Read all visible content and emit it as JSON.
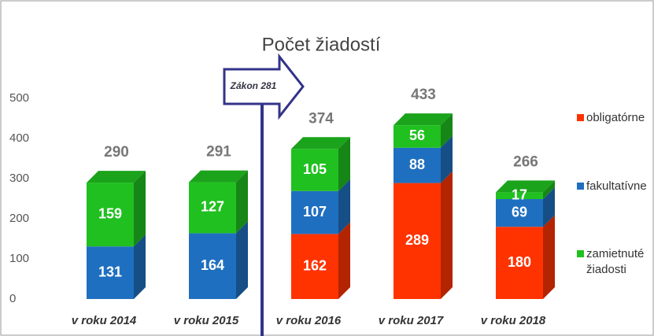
{
  "chart_data": {
    "type": "bar3d_stacked",
    "title": "Počet žiadostí",
    "categories": [
      "v roku 2014",
      "v roku 2015",
      "v roku 2016",
      "v roku 2017",
      "v roku 2018"
    ],
    "series": [
      {
        "name": "obligatórne",
        "color": "#ff3300",
        "values": [
          null,
          null,
          162,
          289,
          180
        ]
      },
      {
        "name": "fakultatívne",
        "color": "#1f6fc0",
        "values": [
          131,
          164,
          107,
          88,
          69
        ]
      },
      {
        "name": "zamietnuté žiadosti",
        "color": "#20c020",
        "values": [
          159,
          127,
          105,
          56,
          17
        ]
      }
    ],
    "totals": [
      290,
      291,
      374,
      433,
      266
    ],
    "annotation": "Zákon 281",
    "ylim": [
      0,
      500
    ],
    "yticks": [
      0,
      100,
      200,
      300,
      400,
      500
    ],
    "grid": false
  }
}
